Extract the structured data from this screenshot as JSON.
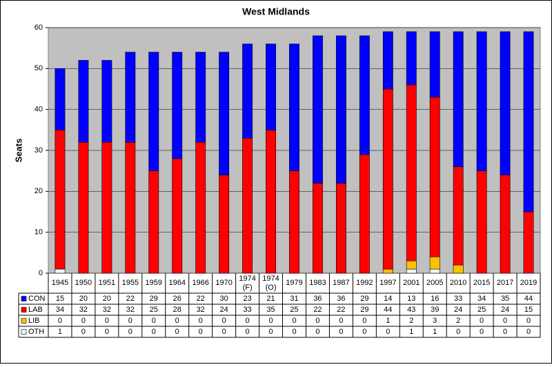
{
  "chart_data": {
    "type": "stacked-bar",
    "title": "West Midlands",
    "y_label": "Seats",
    "categories": [
      "1945",
      "1950",
      "1951",
      "1955",
      "1959",
      "1964",
      "1966",
      "1970",
      "1974\n(F)",
      "1974\n(O)",
      "1979",
      "1983",
      "1987",
      "1992",
      "1997",
      "2001",
      "2005",
      "2010",
      "2015",
      "2017",
      "2019"
    ],
    "series": [
      {
        "name": "CON",
        "color": "#0000ff",
        "values": [
          15,
          20,
          20,
          22,
          29,
          26,
          22,
          30,
          23,
          21,
          31,
          36,
          36,
          29,
          14,
          13,
          16,
          33,
          34,
          35,
          44
        ]
      },
      {
        "name": "LAB",
        "color": "#ff0000",
        "values": [
          34,
          32,
          32,
          32,
          25,
          28,
          32,
          24,
          33,
          35,
          25,
          22,
          22,
          29,
          44,
          43,
          39,
          24,
          25,
          24,
          15
        ]
      },
      {
        "name": "LIB",
        "color": "#ffc000",
        "values": [
          0,
          0,
          0,
          0,
          0,
          0,
          0,
          0,
          0,
          0,
          0,
          0,
          0,
          0,
          1,
          2,
          3,
          2,
          0,
          0,
          0
        ]
      },
      {
        "name": "OTH",
        "color": "#e0ffff",
        "values": [
          1,
          0,
          0,
          0,
          0,
          0,
          0,
          0,
          0,
          0,
          0,
          0,
          0,
          0,
          0,
          1,
          1,
          0,
          0,
          0,
          0
        ]
      }
    ],
    "ylim": [
      0,
      60
    ],
    "yticks": [
      0,
      10,
      20,
      30,
      40,
      50,
      60
    ],
    "grid": true,
    "plot_background": "#c0c0c0"
  }
}
